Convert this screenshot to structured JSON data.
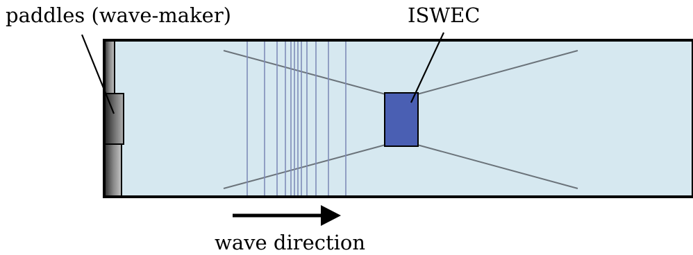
{
  "labels": {
    "paddles": "paddles (wave-maker)",
    "device": "ISWEC",
    "direction": "wave direction"
  },
  "colors": {
    "water": "#d6e8f0",
    "device": "#4a5fb3",
    "wave_lines": "#7f8cb8",
    "ray_lines": "#6b737a",
    "paddle_dark": "#2e2e2e",
    "paddle_light": "#b8b8b8"
  }
}
